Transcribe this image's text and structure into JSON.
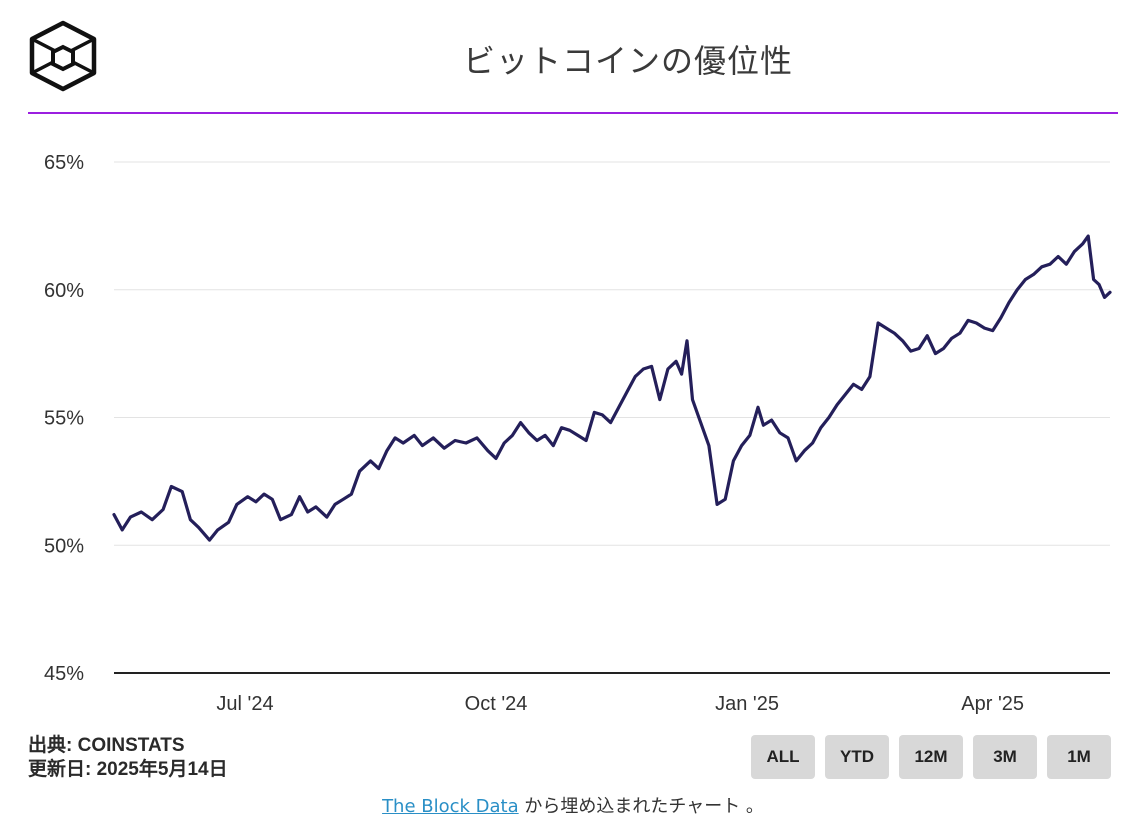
{
  "header": {
    "title": "ビットコインの優位性"
  },
  "footer": {
    "source": "出典: COINSTATS",
    "updated": "更新日: 2025年5月14日",
    "embed_link": "The Block Data",
    "embed_text": " から埋め込まれたチャート 。"
  },
  "range_buttons": [
    "ALL",
    "YTD",
    "12M",
    "3M",
    "1M"
  ],
  "colors": {
    "accent": "#9b1fe0",
    "line": "#241f5a",
    "link": "#2a8fc6"
  },
  "chart_data": {
    "type": "line",
    "title": "ビットコインの優位性",
    "xlabel": "",
    "ylabel": "",
    "ylim": [
      45,
      65
    ],
    "yticks": [
      "45%",
      "50%",
      "55%",
      "60%",
      "65%"
    ],
    "xticks": [
      "Jul '24",
      "Oct '24",
      "Jan '25",
      "Apr '25"
    ],
    "grid": true,
    "series": [
      {
        "values": [
          [
            "2024-05-14",
            51.2
          ],
          [
            "2024-05-17",
            50.6
          ],
          [
            "2024-05-20",
            51.1
          ],
          [
            "2024-05-24",
            51.3
          ],
          [
            "2024-05-28",
            51.0
          ],
          [
            "2024-06-01",
            51.4
          ],
          [
            "2024-06-04",
            52.3
          ],
          [
            "2024-06-08",
            52.1
          ],
          [
            "2024-06-11",
            51.0
          ],
          [
            "2024-06-14",
            50.7
          ],
          [
            "2024-06-18",
            50.2
          ],
          [
            "2024-06-21",
            50.6
          ],
          [
            "2024-06-25",
            50.9
          ],
          [
            "2024-06-28",
            51.6
          ],
          [
            "2024-07-02",
            51.9
          ],
          [
            "2024-07-05",
            51.7
          ],
          [
            "2024-07-08",
            52.0
          ],
          [
            "2024-07-11",
            51.8
          ],
          [
            "2024-07-14",
            51.0
          ],
          [
            "2024-07-18",
            51.2
          ],
          [
            "2024-07-21",
            51.9
          ],
          [
            "2024-07-24",
            51.3
          ],
          [
            "2024-07-27",
            51.5
          ],
          [
            "2024-07-31",
            51.1
          ],
          [
            "2024-08-03",
            51.6
          ],
          [
            "2024-08-06",
            51.8
          ],
          [
            "2024-08-09",
            52.0
          ],
          [
            "2024-08-12",
            52.9
          ],
          [
            "2024-08-16",
            53.3
          ],
          [
            "2024-08-19",
            53.0
          ],
          [
            "2024-08-22",
            53.7
          ],
          [
            "2024-08-25",
            54.2
          ],
          [
            "2024-08-28",
            54.0
          ],
          [
            "2024-09-01",
            54.3
          ],
          [
            "2024-09-04",
            53.9
          ],
          [
            "2024-09-08",
            54.2
          ],
          [
            "2024-09-12",
            53.8
          ],
          [
            "2024-09-16",
            54.1
          ],
          [
            "2024-09-20",
            54.0
          ],
          [
            "2024-09-24",
            54.2
          ],
          [
            "2024-09-28",
            53.7
          ],
          [
            "2024-10-01",
            53.4
          ],
          [
            "2024-10-04",
            54.0
          ],
          [
            "2024-10-07",
            54.3
          ],
          [
            "2024-10-10",
            54.8
          ],
          [
            "2024-10-13",
            54.4
          ],
          [
            "2024-10-16",
            54.1
          ],
          [
            "2024-10-19",
            54.3
          ],
          [
            "2024-10-22",
            53.9
          ],
          [
            "2024-10-25",
            54.6
          ],
          [
            "2024-10-28",
            54.5
          ],
          [
            "2024-10-31",
            54.3
          ],
          [
            "2024-11-03",
            54.1
          ],
          [
            "2024-11-06",
            55.2
          ],
          [
            "2024-11-09",
            55.1
          ],
          [
            "2024-11-12",
            54.8
          ],
          [
            "2024-11-15",
            55.4
          ],
          [
            "2024-11-18",
            56.0
          ],
          [
            "2024-11-21",
            56.6
          ],
          [
            "2024-11-24",
            56.9
          ],
          [
            "2024-11-27",
            57.0
          ],
          [
            "2024-11-30",
            55.7
          ],
          [
            "2024-12-03",
            56.9
          ],
          [
            "2024-12-06",
            57.2
          ],
          [
            "2024-12-08",
            56.7
          ],
          [
            "2024-12-10",
            58.0
          ],
          [
            "2024-12-12",
            55.7
          ],
          [
            "2024-12-15",
            54.8
          ],
          [
            "2024-12-18",
            53.9
          ],
          [
            "2024-12-21",
            51.6
          ],
          [
            "2024-12-24",
            51.8
          ],
          [
            "2024-12-27",
            53.3
          ],
          [
            "2024-12-30",
            53.9
          ],
          [
            "2025-01-02",
            54.3
          ],
          [
            "2025-01-05",
            55.4
          ],
          [
            "2025-01-07",
            54.7
          ],
          [
            "2025-01-10",
            54.9
          ],
          [
            "2025-01-13",
            54.4
          ],
          [
            "2025-01-16",
            54.2
          ],
          [
            "2025-01-19",
            53.3
          ],
          [
            "2025-01-22",
            53.7
          ],
          [
            "2025-01-25",
            54.0
          ],
          [
            "2025-01-28",
            54.6
          ],
          [
            "2025-01-31",
            55.0
          ],
          [
            "2025-02-03",
            55.5
          ],
          [
            "2025-02-06",
            55.9
          ],
          [
            "2025-02-09",
            56.3
          ],
          [
            "2025-02-12",
            56.1
          ],
          [
            "2025-02-15",
            56.6
          ],
          [
            "2025-02-18",
            58.7
          ],
          [
            "2025-02-21",
            58.5
          ],
          [
            "2025-02-24",
            58.3
          ],
          [
            "2025-02-27",
            58.0
          ],
          [
            "2025-03-02",
            57.6
          ],
          [
            "2025-03-05",
            57.7
          ],
          [
            "2025-03-08",
            58.2
          ],
          [
            "2025-03-11",
            57.5
          ],
          [
            "2025-03-14",
            57.7
          ],
          [
            "2025-03-17",
            58.1
          ],
          [
            "2025-03-20",
            58.3
          ],
          [
            "2025-03-23",
            58.8
          ],
          [
            "2025-03-26",
            58.7
          ],
          [
            "2025-03-29",
            58.5
          ],
          [
            "2025-04-01",
            58.4
          ],
          [
            "2025-04-04",
            58.9
          ],
          [
            "2025-04-07",
            59.5
          ],
          [
            "2025-04-10",
            60.0
          ],
          [
            "2025-04-13",
            60.4
          ],
          [
            "2025-04-16",
            60.6
          ],
          [
            "2025-04-19",
            60.9
          ],
          [
            "2025-04-22",
            61.0
          ],
          [
            "2025-04-25",
            61.3
          ],
          [
            "2025-04-28",
            61.0
          ],
          [
            "2025-05-01",
            61.5
          ],
          [
            "2025-05-04",
            61.8
          ],
          [
            "2025-05-06",
            62.1
          ],
          [
            "2025-05-08",
            60.4
          ],
          [
            "2025-05-10",
            60.2
          ],
          [
            "2025-05-12",
            59.7
          ],
          [
            "2025-05-14",
            59.9
          ]
        ]
      }
    ]
  }
}
